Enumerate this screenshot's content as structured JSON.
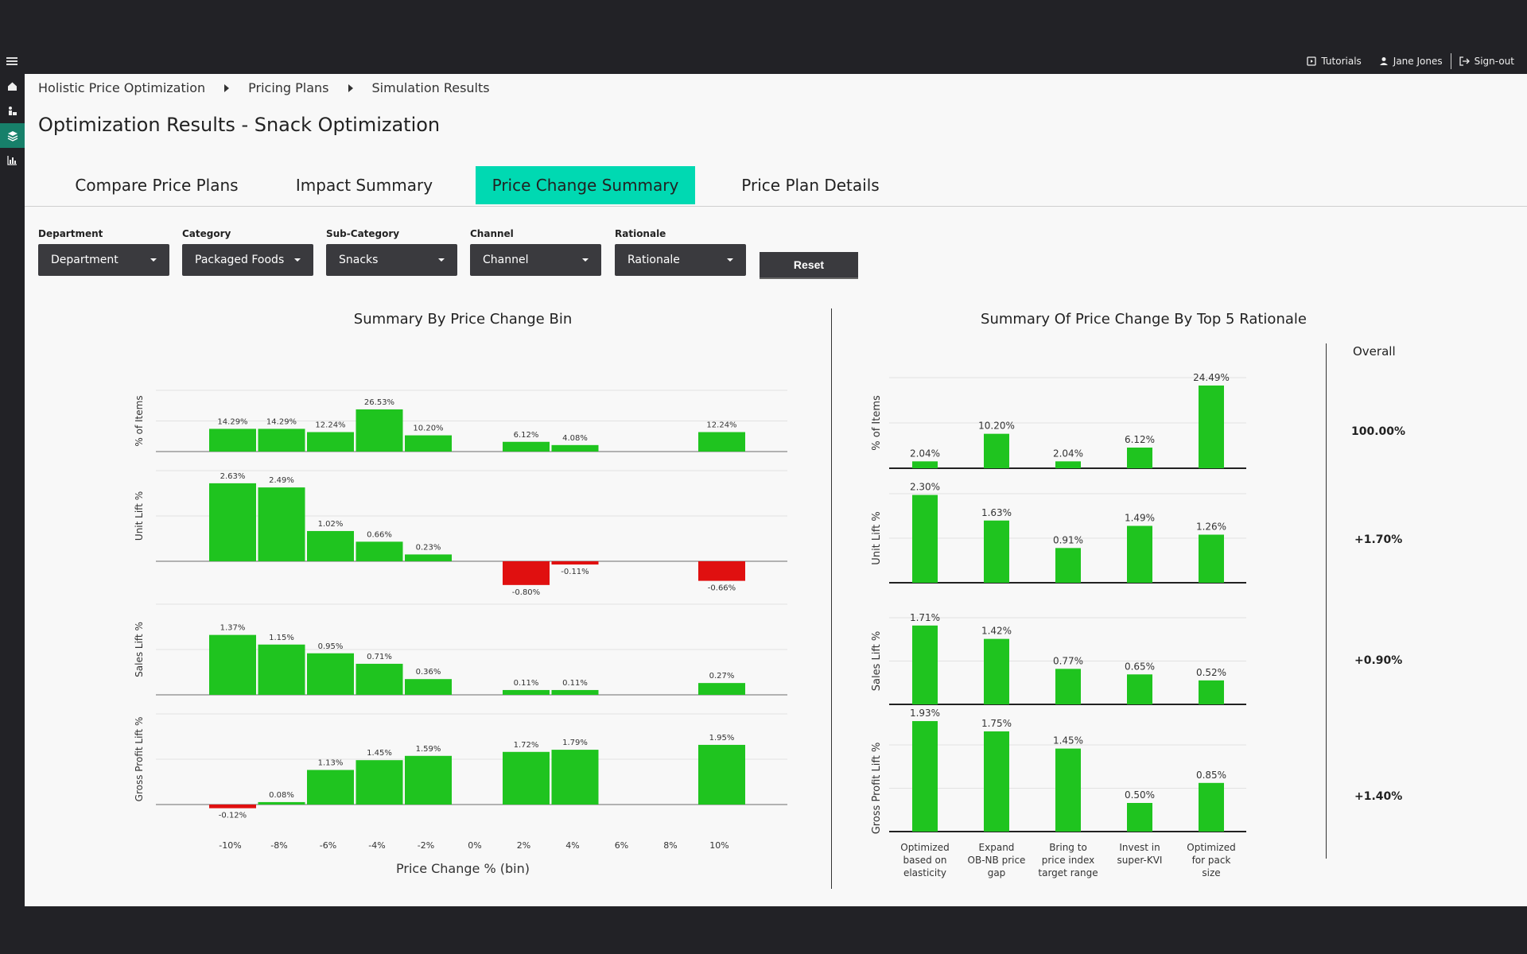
{
  "topbar": {
    "tutorials": "Tutorials",
    "user": "Jane Jones",
    "signout": "Sign-out"
  },
  "breadcrumb": [
    "Holistic Price Optimization",
    "Pricing Plans",
    "Simulation Results"
  ],
  "page_title": "Optimization Results - Snack Optimization",
  "tabs": [
    {
      "label": "Compare Price Plans",
      "active": false
    },
    {
      "label": "Impact Summary",
      "active": false
    },
    {
      "label": "Price Change Summary",
      "active": true
    },
    {
      "label": "Price Plan Details",
      "active": false
    }
  ],
  "filters": [
    {
      "label": "Department",
      "value": "Department"
    },
    {
      "label": "Category",
      "value": "Packaged Foods"
    },
    {
      "label": "Sub-Category",
      "value": "Snacks"
    },
    {
      "label": "Channel",
      "value": "Channel"
    },
    {
      "label": "Rationale",
      "value": "Rationale"
    }
  ],
  "reset_label": "Reset",
  "colors": {
    "positive": "#1fc41f",
    "negative": "#e01010",
    "accent": "#00d9b2"
  },
  "overall": {
    "heading": "Overall",
    "values": [
      "100.00%",
      "+1.70%",
      "+0.90%",
      "+1.40%"
    ]
  },
  "chart_data": [
    {
      "type": "bar",
      "title": "Summary By Price Change Bin",
      "xlabel": "Price Change % (bin)",
      "categories": [
        "-10%",
        "-8%",
        "-6%",
        "-4%",
        "-2%",
        "0%",
        "2%",
        "4%",
        "6%",
        "8%",
        "10%"
      ],
      "series": [
        {
          "name": "% of Items",
          "values": [
            14.29,
            14.29,
            12.24,
            26.53,
            10.2,
            null,
            6.12,
            4.08,
            null,
            null,
            12.24
          ],
          "labels": [
            "14.29%",
            "14.29%",
            "12.24%",
            "26.53%",
            "10.20%",
            "",
            "6.12%",
            "4.08%",
            "",
            "",
            "12.24%"
          ]
        },
        {
          "name": "Unit Lift %",
          "values": [
            2.63,
            2.49,
            1.02,
            0.66,
            0.23,
            null,
            -0.8,
            -0.11,
            null,
            null,
            -0.66
          ],
          "labels": [
            "2.63%",
            "2.49%",
            "1.02%",
            "0.66%",
            "0.23%",
            "",
            "-0.80%",
            "-0.11%",
            "",
            "",
            "-0.66%"
          ]
        },
        {
          "name": "Sales Lift %",
          "values": [
            1.37,
            1.15,
            0.95,
            0.71,
            0.36,
            null,
            0.11,
            0.11,
            null,
            null,
            0.27
          ],
          "labels": [
            "1.37%",
            "1.15%",
            "0.95%",
            "0.71%",
            "0.36%",
            "",
            "0.11%",
            "0.11%",
            "",
            "",
            "0.27%"
          ]
        },
        {
          "name": "Gross Profit Lift %",
          "values": [
            -0.12,
            0.08,
            1.13,
            1.45,
            1.59,
            null,
            1.72,
            1.79,
            null,
            null,
            1.95
          ],
          "labels": [
            "-0.12%",
            "0.08%",
            "1.13%",
            "1.45%",
            "1.59%",
            "",
            "1.72%",
            "1.79%",
            "",
            "",
            "1.95%"
          ]
        }
      ]
    },
    {
      "type": "bar",
      "title": "Summary Of Price Change By Top 5 Rationale",
      "categories": [
        "Optimized based on elasticity",
        "Expand OB-NB price gap",
        "Bring to price index target range",
        "Invest in super-KVI",
        "Optimized for pack size"
      ],
      "category_lines": [
        [
          "Optimized",
          "based on",
          "elasticity"
        ],
        [
          "Expand",
          "OB-NB price",
          "gap"
        ],
        [
          "Bring to",
          "price index",
          "target range"
        ],
        [
          "Invest in",
          "super-KVI"
        ],
        [
          "Optimized",
          "for pack",
          "size"
        ]
      ],
      "series": [
        {
          "name": "% of Items",
          "values": [
            2.04,
            10.2,
            2.04,
            6.12,
            24.49
          ],
          "labels": [
            "2.04%",
            "10.20%",
            "2.04%",
            "6.12%",
            "24.49%"
          ]
        },
        {
          "name": "Unit Lift %",
          "values": [
            2.3,
            1.63,
            0.91,
            1.49,
            1.26
          ],
          "labels": [
            "2.30%",
            "1.63%",
            "0.91%",
            "1.49%",
            "1.26%"
          ]
        },
        {
          "name": "Sales Lift %",
          "values": [
            1.71,
            1.42,
            0.77,
            0.65,
            0.52
          ],
          "labels": [
            "1.71%",
            "1.42%",
            "0.77%",
            "0.65%",
            "0.52%"
          ]
        },
        {
          "name": "Gross Profit Lift %",
          "values": [
            1.93,
            1.75,
            1.45,
            0.5,
            0.85
          ],
          "labels": [
            "1.93%",
            "1.75%",
            "1.45%",
            "0.50%",
            "0.85%"
          ]
        }
      ]
    }
  ]
}
